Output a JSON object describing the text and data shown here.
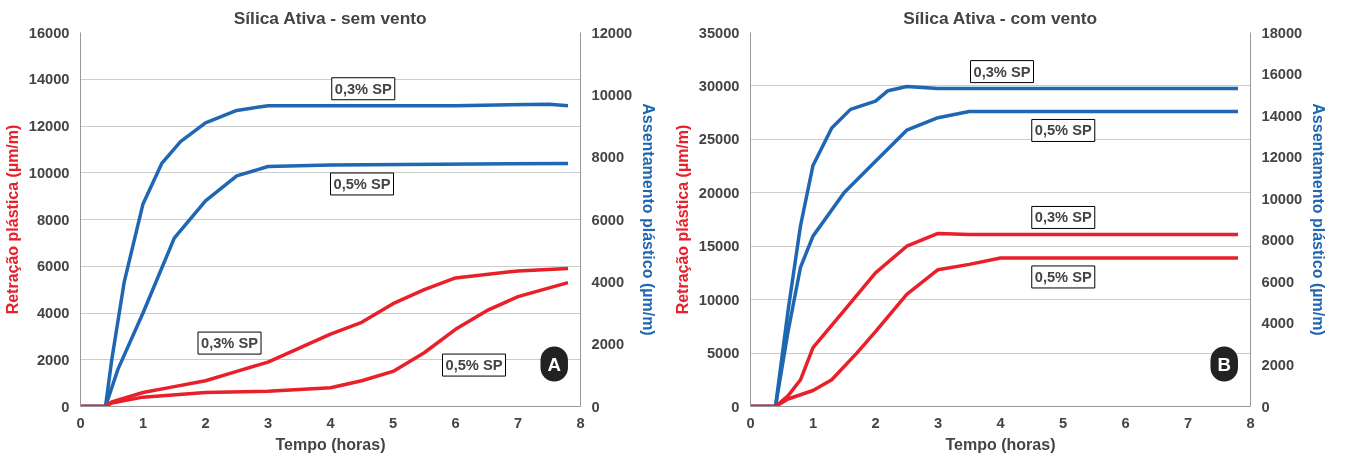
{
  "chart_data": [
    {
      "type": "line",
      "title": "Sílica Ativa - sem vento",
      "xlabel": "Tempo (horas)",
      "ylabel": "Retração plástica (µm/m)",
      "y2label": "Assentamento plástico (µm/m)",
      "xlim": [
        0,
        8
      ],
      "xticks": [
        0,
        1,
        2,
        3,
        4,
        5,
        6,
        7,
        8
      ],
      "ylim": [
        0,
        16000
      ],
      "yticks": [
        0,
        2000,
        4000,
        6000,
        8000,
        10000,
        12000,
        14000,
        16000
      ],
      "y2lim": [
        0,
        12000
      ],
      "y2ticks": [
        0,
        2000,
        4000,
        6000,
        8000,
        10000,
        12000
      ],
      "grid": "y",
      "legend": false,
      "annotations": [
        "A"
      ],
      "series": [
        {
          "name": "0,3% SP",
          "color": "#1f66b3",
          "axis": "y2",
          "x": [
            0,
            0.4,
            0.5,
            0.7,
            1,
            1.3,
            1.6,
            2,
            2.5,
            3,
            4,
            6,
            7.5,
            7.8
          ],
          "values": [
            0,
            0,
            1500,
            4000,
            6500,
            7800,
            8500,
            9100,
            9500,
            9650,
            9650,
            9650,
            9700,
            9650
          ]
        },
        {
          "name": "0,5% SP",
          "color": "#1f66b3",
          "axis": "y2",
          "x": [
            0,
            0.4,
            0.6,
            1,
            1.5,
            2,
            2.5,
            3,
            4,
            7.8
          ],
          "values": [
            0,
            0,
            1200,
            3000,
            5400,
            6600,
            7400,
            7700,
            7750,
            7800
          ]
        },
        {
          "name": "0,3% SP",
          "color": "#e8202a",
          "x": [
            0,
            0.4,
            0.5,
            1,
            1.5,
            2,
            2.5,
            3,
            3.5,
            4,
            4.5,
            5,
            5.5,
            6,
            7,
            7.8
          ],
          "values": [
            0,
            0,
            200,
            600,
            850,
            1100,
            1500,
            1900,
            2500,
            3100,
            3600,
            4400,
            5000,
            5500,
            5800,
            5900
          ]
        },
        {
          "name": "0,5% SP",
          "color": "#e8202a",
          "x": [
            0,
            0.4,
            0.5,
            1,
            2,
            3,
            4,
            4.5,
            5,
            5.5,
            6,
            6.5,
            7,
            7.8
          ],
          "values": [
            0,
            0,
            150,
            400,
            600,
            650,
            800,
            1100,
            1500,
            2300,
            3300,
            4100,
            4700,
            5300
          ]
        }
      ]
    },
    {
      "type": "line",
      "title": "Sílica Ativa - com vento",
      "xlabel": "Tempo (horas)",
      "ylabel": "Retração plástica (µm/m)",
      "y2label": "Assentamento plástico (µm/m)",
      "xlim": [
        0,
        8
      ],
      "xticks": [
        0,
        1,
        2,
        3,
        4,
        5,
        6,
        7,
        8
      ],
      "ylim": [
        0,
        35000
      ],
      "yticks": [
        0,
        5000,
        10000,
        15000,
        20000,
        25000,
        30000,
        35000
      ],
      "y2lim": [
        0,
        18000
      ],
      "y2ticks": [
        0,
        2000,
        4000,
        6000,
        8000,
        10000,
        12000,
        14000,
        16000,
        18000
      ],
      "grid": "y",
      "legend": false,
      "annotations": [
        "B"
      ],
      "series": [
        {
          "name": "0,3% SP",
          "color": "#1f66b3",
          "axis": "y2",
          "x": [
            0,
            0.4,
            0.6,
            0.8,
            1,
            1.3,
            1.6,
            2,
            2.2,
            2.5,
            3,
            7.8
          ],
          "values": [
            0,
            0,
            4600,
            8700,
            11600,
            13400,
            14300,
            14700,
            15200,
            15400,
            15300,
            15300
          ]
        },
        {
          "name": "0,5% SP",
          "color": "#1f66b3",
          "axis": "y2",
          "x": [
            0,
            0.4,
            0.6,
            0.8,
            1,
            1.5,
            2,
            2.5,
            3,
            3.5,
            4,
            7.8
          ],
          "values": [
            0,
            0,
            3600,
            6700,
            8200,
            10300,
            11800,
            13300,
            13900,
            14200,
            14200,
            14200
          ]
        },
        {
          "name": "0,3% SP",
          "color": "#e8202a",
          "x": [
            0,
            0.4,
            0.6,
            0.8,
            1,
            1.5,
            2,
            2.5,
            3,
            3.5,
            7.8
          ],
          "values": [
            0,
            0,
            1000,
            2500,
            5500,
            9000,
            12500,
            15000,
            16200,
            16100,
            16100
          ]
        },
        {
          "name": "0,5% SP",
          "color": "#e8202a",
          "x": [
            0,
            0.4,
            0.6,
            1,
            1.3,
            1.7,
            2,
            2.5,
            3,
            3.5,
            4,
            7.8
          ],
          "values": [
            0,
            0,
            700,
            1500,
            2500,
            5000,
            7000,
            10500,
            12800,
            13300,
            13900,
            13900
          ]
        }
      ]
    }
  ]
}
